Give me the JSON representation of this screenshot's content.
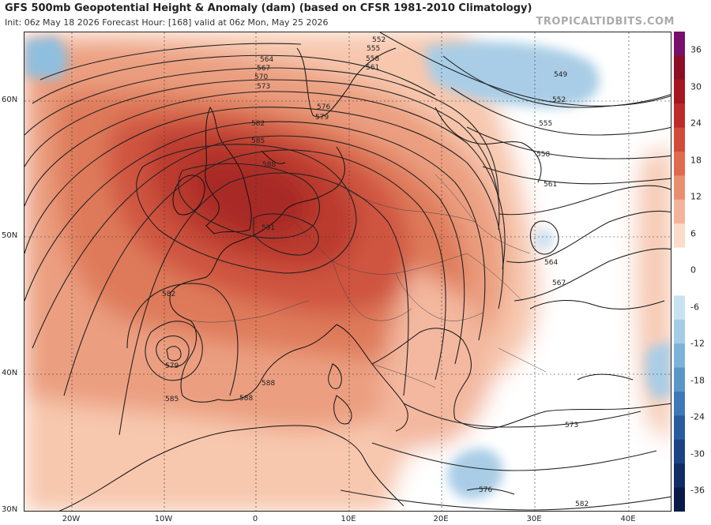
{
  "header": {
    "title": "GFS 500mb Geopotential Height & Anomaly (dam) (based on CFSR 1981-2010 Climatology)",
    "subtitle": "Init: 06z May 18 2026   Forecast Hour: [168]   valid at 06z Mon, May 25 2026",
    "watermark": "TROPICALTIDBITS.COM"
  },
  "axes": {
    "lat_labels": [
      "60N",
      "50N",
      "40N",
      "30N"
    ],
    "lon_labels": [
      "20W",
      "10W",
      "0",
      "10E",
      "20E",
      "30E",
      "40E"
    ]
  },
  "colorbar": {
    "labels": [
      "36",
      "30",
      "24",
      "18",
      "12",
      "6",
      "0",
      "-6",
      "-12",
      "-18",
      "-24",
      "-30",
      "-36"
    ],
    "colors": [
      "#7a0f6b",
      "#8c0d24",
      "#a5161f",
      "#be2a29",
      "#d24a3a",
      "#e06a4e",
      "#eb8e6f",
      "#f4b49a",
      "#fadcc9",
      "#ffffff",
      "#ffffff",
      "#c9e2f1",
      "#a3cce6",
      "#7db3d9",
      "#5a97c9",
      "#3d79b6",
      "#285c9f",
      "#1b4384",
      "#102c66",
      "#091a48"
    ]
  },
  "contour_labels": {
    "c552a": "552",
    "c555a": "555",
    "c558a": "558",
    "c561a": "561",
    "c564a": "564",
    "c567a": "567",
    "c570a": "570",
    "c573a": "573",
    "c576a": "576",
    "c579a": "579",
    "c582a": "582",
    "c585a": "585",
    "c588a": "588",
    "c591a": "591",
    "c549b": "549",
    "c552b": "552",
    "c555b": "555",
    "c558b": "558",
    "c561b": "561",
    "c564b": "564",
    "c567b": "567",
    "c582c": "582",
    "c579c": "579",
    "c585c": "585",
    "c588c": "588",
    "c588d": "588",
    "c573d": "573",
    "c576d": "576",
    "c582d": "582"
  }
}
